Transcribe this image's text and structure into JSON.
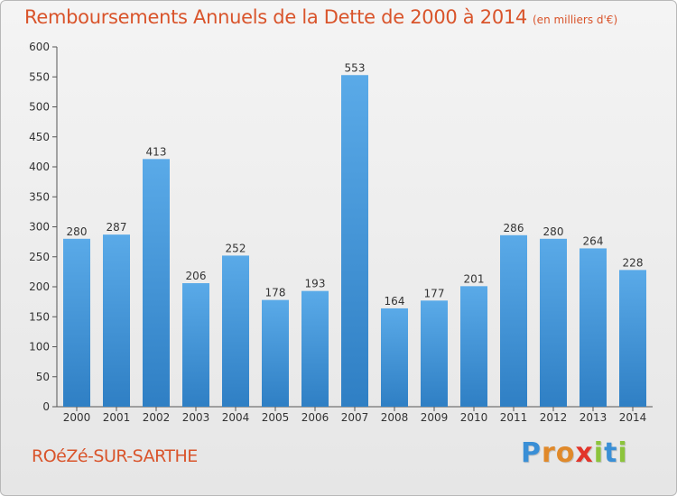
{
  "header": {
    "title": "Remboursements Annuels de la Dette de 2000 à 2014",
    "unit": "(en milliers d'€)"
  },
  "footer": {
    "commune": "ROéZé-SUR-SARTHE",
    "logo_letters": [
      {
        "ch": "P",
        "color": "#3a8fd6"
      },
      {
        "ch": "r",
        "color": "#e0892a"
      },
      {
        "ch": "o",
        "color": "#e0892a"
      },
      {
        "ch": "x",
        "color": "#e2342a"
      },
      {
        "ch": "i",
        "color": "#8cc43c"
      },
      {
        "ch": "t",
        "color": "#3a8fd6"
      },
      {
        "ch": "i",
        "color": "#8cc43c"
      }
    ]
  },
  "chart_data": {
    "type": "bar",
    "categories": [
      "2000",
      "2001",
      "2002",
      "2003",
      "2004",
      "2005",
      "2006",
      "2007",
      "2008",
      "2009",
      "2010",
      "2011",
      "2012",
      "2013",
      "2014"
    ],
    "values": [
      280,
      287,
      413,
      206,
      252,
      178,
      193,
      553,
      164,
      177,
      201,
      286,
      280,
      264,
      228
    ],
    "ylim": [
      0,
      600
    ],
    "yticks": [
      0,
      50,
      100,
      150,
      200,
      250,
      300,
      350,
      400,
      450,
      500,
      550,
      600
    ],
    "grid": false,
    "bar_color_top": "#5aaae8",
    "bar_color_bottom": "#2f7fc4"
  }
}
